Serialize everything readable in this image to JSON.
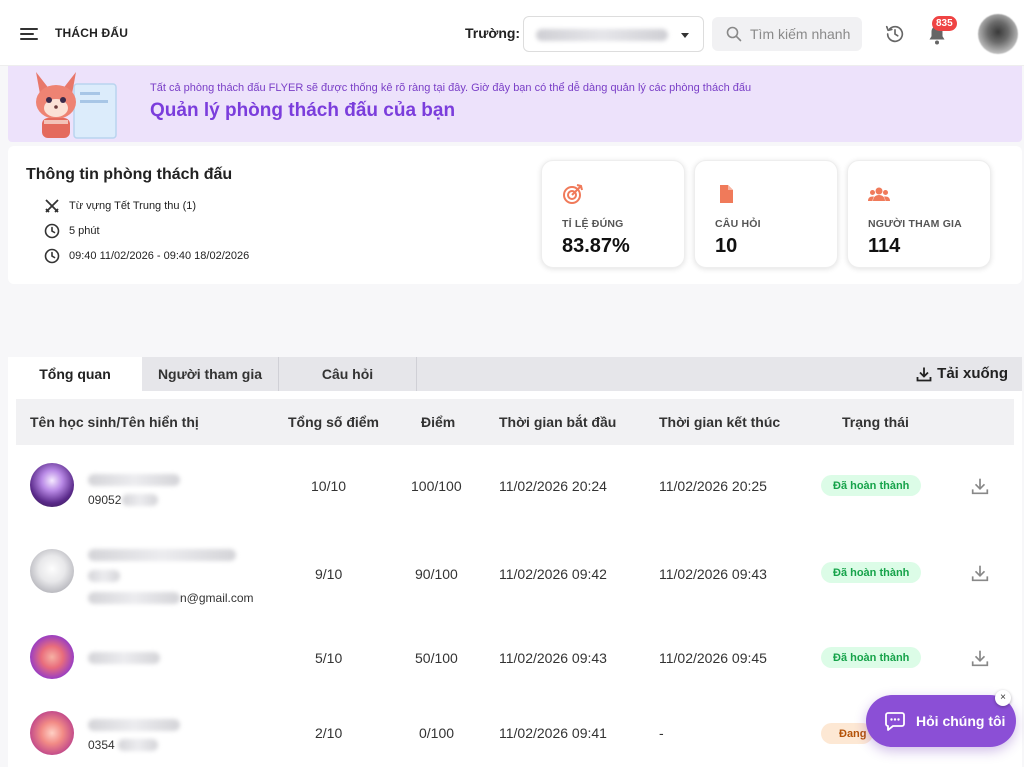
{
  "header": {
    "title": "THÁCH ĐẤU",
    "school_label": "Trường:",
    "search_placeholder": "Tìm kiếm nhanh",
    "notification_count": "835"
  },
  "banner": {
    "subtitle": "Tất cả phòng thách đấu FLYER sẽ được thống kê rõ ràng tại đây. Giờ đây bạn có thể dễ dàng quản lý các phòng thách đấu",
    "title": "Quản lý phòng thách đấu của bạn"
  },
  "room_info": {
    "heading": "Thông tin phòng thách đấu",
    "topic": "Từ vựng Tết Trung thu (1)",
    "duration": "5 phút",
    "time_range": "09:40 11/02/2026 - 09:40 18/02/2026"
  },
  "stats": [
    {
      "label": "TỈ LỆ ĐÚNG",
      "value": "83.87%",
      "icon": "target-icon"
    },
    {
      "label": "CÂU HỎI",
      "value": "10",
      "icon": "document-icon"
    },
    {
      "label": "NGƯỜI THAM GIA",
      "value": "114",
      "icon": "users-icon"
    }
  ],
  "tabs": [
    {
      "label": "Tổng quan",
      "active": true
    },
    {
      "label": "Người tham gia",
      "active": false
    },
    {
      "label": "Câu hỏi",
      "active": false
    }
  ],
  "download_label": "Tải xuống",
  "table": {
    "columns": [
      "Tên học sinh/Tên hiển thị",
      "Tổng số điểm",
      "Điểm",
      "Thời gian bắt đầu",
      "Thời gian kết thúc",
      "Trạng thái"
    ],
    "rows": [
      {
        "sub": "09052",
        "total": "10/10",
        "score": "100/100",
        "start": "11/02/2026 20:24",
        "end": "11/02/2026 20:25",
        "status": "Đã hoàn thành"
      },
      {
        "sub": "n@gmail.com",
        "total": "9/10",
        "score": "90/100",
        "start": "11/02/2026 09:42",
        "end": "11/02/2026 09:43",
        "status": "Đã hoàn thành"
      },
      {
        "sub": "",
        "total": "5/10",
        "score": "50/100",
        "start": "11/02/2026 09:43",
        "end": "11/02/2026 09:45",
        "status": "Đã hoàn thành"
      },
      {
        "sub": "0354",
        "total": "2/10",
        "score": "0/100",
        "start": "11/02/2026 09:41",
        "end": "-",
        "status": "Đang"
      }
    ]
  },
  "chat": {
    "label": "Hỏi chúng tôi",
    "close": "×"
  },
  "colors": {
    "accent": "#8b4fd6",
    "banner_bg": "#ede2fb",
    "stat_icon": "#f07a5a",
    "success_bg": "#dcfce7",
    "success_text": "#16a34a"
  }
}
